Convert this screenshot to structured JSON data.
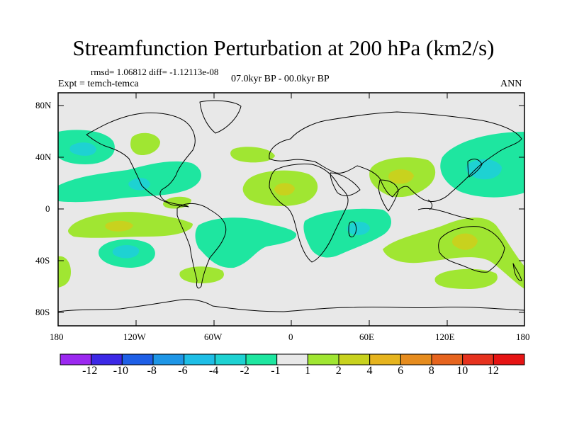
{
  "title": "Streamfunction Perturbation at 200 hPa (km2/s)",
  "stats": "rmsd= 1.06812 diff= -1.12113e-08",
  "expt": "Expt = temch-temca",
  "period": "07.0kyr BP - 00.0kyr BP",
  "season": "ANN",
  "lat_ticks": [
    "80N",
    "40N",
    "0",
    "40S",
    "80S"
  ],
  "lon_ticks": [
    "180",
    "120W",
    "60W",
    "0",
    "60E",
    "120E",
    "180"
  ],
  "colorbar": {
    "labels": [
      "-12",
      "-10",
      "-8",
      "-6",
      "-4",
      "-2",
      "-1",
      "1",
      "2",
      "4",
      "6",
      "8",
      "10",
      "12"
    ],
    "colors": [
      "#9B28F0",
      "#3C28E6",
      "#1E5FE6",
      "#1E96E6",
      "#1EBEE6",
      "#1ED2D2",
      "#1EE6A0",
      "#E8E8E8",
      "#A0E632",
      "#C8D21E",
      "#E6B41E",
      "#E68C1E",
      "#E6641E",
      "#E6321E",
      "#E61414"
    ]
  },
  "chart_data": {
    "type": "heatmap",
    "title": "Streamfunction Perturbation at 200 hPa (km2/s)",
    "x_range_deg": [
      -180,
      180
    ],
    "y_range_deg": [
      -90,
      90
    ],
    "contour_levels": [
      -12,
      -10,
      -8,
      -6,
      -4,
      -2,
      -1,
      1,
      2,
      4,
      6,
      8,
      10,
      12
    ],
    "features": [
      {
        "region": "North Pacific (40N,165W)",
        "sign": "negative",
        "approx_min": -4
      },
      {
        "region": "Central America (20N,110W)",
        "sign": "negative",
        "approx_min": -4
      },
      {
        "region": "Eastern North America (35N,80W)",
        "sign": "negative",
        "approx_min": -2
      },
      {
        "region": "NW North America (45N,115W)",
        "sign": "positive",
        "approx_max": 2
      },
      {
        "region": "North Africa / Sahara (20N,0)",
        "sign": "positive",
        "approx_max": 4
      },
      {
        "region": "South Asia / Tibet (30N,80E)",
        "sign": "positive",
        "approx_max": 4
      },
      {
        "region": "NW Pacific / Japan (35N,145E)",
        "sign": "negative",
        "approx_min": -4
      },
      {
        "region": "SE Pacific (20S,125W)",
        "sign": "positive",
        "approx_max": 4
      },
      {
        "region": "South Pacific (40S,130W)",
        "sign": "negative",
        "approx_min": -4
      },
      {
        "region": "South America / S. Atlantic (30S,40W)",
        "sign": "negative",
        "approx_min": -2
      },
      {
        "region": "SW Indian Ocean (25S,50E)",
        "sign": "negative",
        "approx_min": -4
      },
      {
        "region": "Australia (25S,135E)",
        "sign": "positive",
        "approx_max": 4
      },
      {
        "region": "Southern Ocean (55S,60W)",
        "sign": "positive",
        "approx_max": 2
      },
      {
        "region": "Southern Ocean (55S,115E)",
        "sign": "positive",
        "approx_max": 2
      }
    ]
  }
}
